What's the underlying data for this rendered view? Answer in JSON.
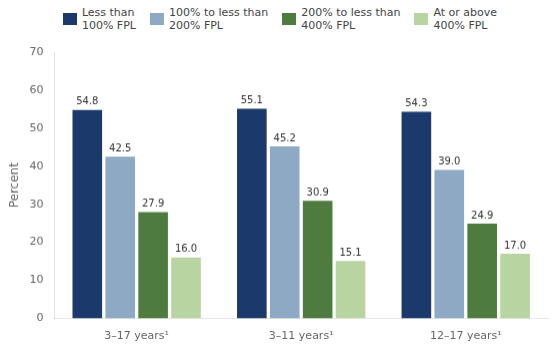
{
  "chart_data": {
    "type": "bar",
    "categories": [
      "3–17 years¹",
      "3–11 years¹",
      "12–17 years¹"
    ],
    "series": [
      {
        "name": "Less than\n100% FPL",
        "color": "#1b3a6b",
        "values": [
          54.8,
          55.1,
          54.3
        ],
        "value_labels": [
          "54.8",
          "55.1",
          "54.3"
        ]
      },
      {
        "name": "100% to less than\n200% FPL",
        "color": "#8da9c4",
        "values": [
          42.5,
          45.2,
          39.0
        ],
        "value_labels": [
          "42.5",
          "45.2",
          "39.0"
        ]
      },
      {
        "name": "200% to less than\n400% FPL",
        "color": "#4e7c3f",
        "values": [
          27.9,
          30.9,
          24.9
        ],
        "value_labels": [
          "27.9",
          "30.9",
          "24.9"
        ]
      },
      {
        "name": "At or above\n400% FPL",
        "color": "#b8d4a0",
        "values": [
          16.0,
          15.1,
          17.0
        ],
        "value_labels": [
          "16.0",
          "15.1",
          "17.0"
        ]
      }
    ],
    "ylabel": "Percent",
    "ylim": [
      0,
      70
    ],
    "yticks": [
      0,
      10,
      20,
      30,
      40,
      50,
      60,
      70
    ],
    "grid": false,
    "legend": "top",
    "data_labels": true
  }
}
